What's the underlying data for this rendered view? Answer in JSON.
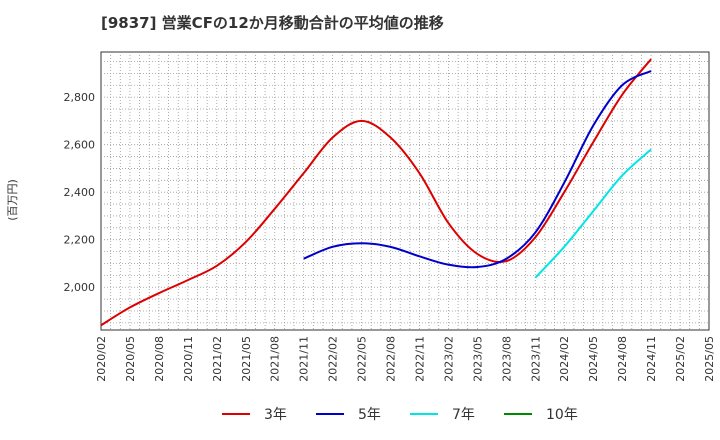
{
  "chart_data": {
    "type": "line",
    "title": "[9837]  営業CFの12か月移動合計の平均値の推移",
    "ylabel": "(百万円)",
    "xlabel": "",
    "ylim": [
      1820,
      2990
    ],
    "yticks": [
      2000,
      2200,
      2400,
      2600,
      2800
    ],
    "ytick_labels": [
      "2,000",
      "2,200",
      "2,400",
      "2,600",
      "2,800"
    ],
    "xticks": [
      "2020/02",
      "2020/05",
      "2020/08",
      "2020/11",
      "2021/02",
      "2021/05",
      "2021/08",
      "2021/11",
      "2022/02",
      "2022/05",
      "2022/08",
      "2022/11",
      "2023/02",
      "2023/05",
      "2023/08",
      "2023/11",
      "2024/02",
      "2024/05",
      "2024/08",
      "2024/11",
      "2025/02",
      "2025/05"
    ],
    "x_range": [
      "2020/02",
      "2025/05"
    ],
    "grid": true,
    "legend_position": "bottom",
    "series": [
      {
        "name": "3年",
        "color": "#dd0000",
        "points": [
          [
            "2020/02",
            1840
          ],
          [
            "2020/05",
            1915
          ],
          [
            "2020/08",
            1975
          ],
          [
            "2020/11",
            2030
          ],
          [
            "2021/02",
            2090
          ],
          [
            "2021/05",
            2190
          ],
          [
            "2021/08",
            2330
          ],
          [
            "2021/11",
            2480
          ],
          [
            "2022/02",
            2630
          ],
          [
            "2022/05",
            2700
          ],
          [
            "2022/08",
            2630
          ],
          [
            "2022/11",
            2480
          ],
          [
            "2023/02",
            2270
          ],
          [
            "2023/05",
            2140
          ],
          [
            "2023/08",
            2110
          ],
          [
            "2023/11",
            2210
          ],
          [
            "2024/02",
            2400
          ],
          [
            "2024/05",
            2610
          ],
          [
            "2024/08",
            2810
          ],
          [
            "2024/11",
            2960
          ]
        ]
      },
      {
        "name": "5年",
        "color": "#0000cc",
        "points": [
          [
            "2021/11",
            2120
          ],
          [
            "2022/02",
            2170
          ],
          [
            "2022/05",
            2185
          ],
          [
            "2022/08",
            2170
          ],
          [
            "2022/11",
            2130
          ],
          [
            "2023/02",
            2095
          ],
          [
            "2023/05",
            2085
          ],
          [
            "2023/08",
            2120
          ],
          [
            "2023/11",
            2230
          ],
          [
            "2024/02",
            2440
          ],
          [
            "2024/05",
            2680
          ],
          [
            "2024/08",
            2850
          ],
          [
            "2024/11",
            2910
          ]
        ]
      },
      {
        "name": "7年",
        "color": "#00e5e5",
        "points": [
          [
            "2023/11",
            2040
          ],
          [
            "2024/02",
            2170
          ],
          [
            "2024/05",
            2320
          ],
          [
            "2024/08",
            2470
          ],
          [
            "2024/11",
            2580
          ]
        ]
      },
      {
        "name": "10年",
        "color": "#008800",
        "points": []
      }
    ]
  }
}
